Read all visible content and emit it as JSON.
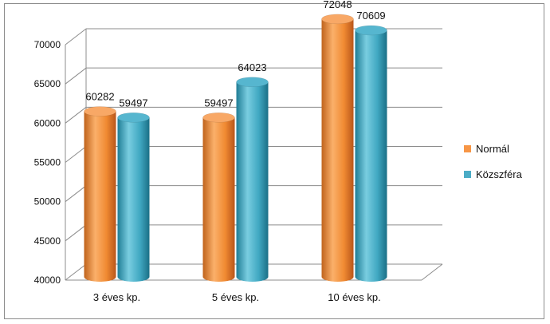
{
  "chart_data": {
    "type": "bar",
    "title": "",
    "xlabel": "",
    "ylabel": "",
    "categories": [
      "3 éves kp.",
      "5 éves kp.",
      "10 éves kp."
    ],
    "series": [
      {
        "name": "Normál",
        "values": [
          60282,
          59497,
          72048
        ],
        "color": "#f79646"
      },
      {
        "name": "Közszféra",
        "values": [
          59497,
          64023,
          70609
        ],
        "color": "#4bacc6"
      }
    ],
    "ylim": [
      40000,
      70000
    ],
    "yticks": [
      "40000",
      "45000",
      "50000",
      "55000",
      "60000",
      "65000",
      "70000"
    ],
    "grid": true,
    "legend": "right",
    "style": "3d-cylinder"
  }
}
